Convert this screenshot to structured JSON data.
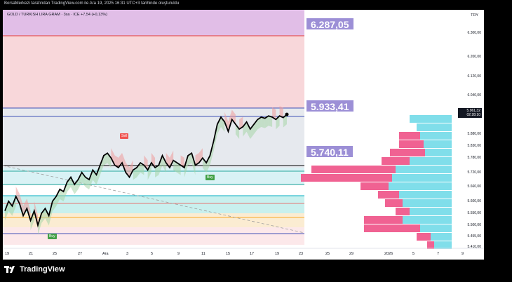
{
  "banner": "BorsaMerkezi tarafından TradingView.com ile Ara 19, 2025 16:31 UTC+3 tarihinde oluşturuldu",
  "legend": "GOLD / TURKISH LIRA GRAM · 3sa · ICE  +7,54 (+0,13%)",
  "currency": "TRY",
  "footer_brand": "TradingView",
  "colors": {
    "bull_fill": "#a5d6a7",
    "bear_fill": "#ef9a9a",
    "callout": "#9c8fd6",
    "profile_sell": "#f06292",
    "profile_buy": "#80deea",
    "price": "#000000"
  },
  "signals": {
    "sell": "Sell",
    "buy1": "Buy",
    "buy2": "Buy"
  },
  "callouts": {
    "c1": "6.287,05",
    "c2": "5.933,41",
    "c3": "5.740,11"
  },
  "last_price": {
    "value": "5.961,32",
    "countdown": "02:28:10"
  },
  "chart_data": {
    "type": "line",
    "title": "GOLD / TURKISH LIRA GRAM · 3sa · ICE",
    "y_tick_labels": [
      "6.300,00",
      "6.200,00",
      "6.120,00",
      "6.040,00",
      "5.961,32",
      "5.880,00",
      "5.830,00",
      "5.780,00",
      "5.720,00",
      "5.660,00",
      "5.600,00",
      "5.550,00",
      "5.500,00",
      "5.455,00",
      "5.410,00"
    ],
    "y_ticks": [
      6300,
      6200,
      6120,
      6040,
      5961.32,
      5880,
      5830,
      5780,
      5720,
      5660,
      5600,
      5550,
      5500,
      5455,
      5410
    ],
    "x_tick_labels": [
      "19",
      "21",
      "25",
      "27",
      "Ara",
      "3",
      "5",
      "9",
      "11",
      "15",
      "17",
      "19",
      "23",
      "25",
      "29",
      "2026",
      "5",
      "7",
      "9"
    ],
    "ylim": [
      5400,
      6360
    ],
    "grid": false,
    "series": [
      {
        "values": [
          5560,
          5600,
          5580,
          5620,
          5590,
          5540,
          5570,
          5520,
          5560,
          5500,
          5550,
          5570,
          5540,
          5600,
          5620,
          5650,
          5640,
          5680,
          5700,
          5670,
          5690,
          5720,
          5700,
          5690,
          5730,
          5710,
          5750,
          5790,
          5800,
          5780,
          5750,
          5740,
          5760,
          5720,
          5700,
          5730,
          5740,
          5760,
          5750,
          5730,
          5760,
          5740,
          5750,
          5790,
          5760,
          5740,
          5770,
          5760,
          5750,
          5740,
          5790,
          5800,
          5750,
          5760,
          5780,
          5760,
          5790,
          5850,
          5920,
          5950,
          5930,
          5890,
          5940,
          5920,
          5900,
          5910,
          5930,
          5900,
          5920,
          5940,
          5950,
          5945,
          5955,
          5950,
          5940,
          5955,
          5948,
          5961.32
        ]
      }
    ],
    "volume_profile_buy": [
      60,
      50,
      45,
      40,
      38,
      60,
      80,
      85,
      90,
      75,
      70,
      60,
      70,
      45,
      30,
      25
    ],
    "volume_profile_sell": [
      0,
      0,
      30,
      35,
      50,
      40,
      120,
      130,
      40,
      30,
      25,
      20,
      55,
      80,
      20,
      10
    ]
  }
}
